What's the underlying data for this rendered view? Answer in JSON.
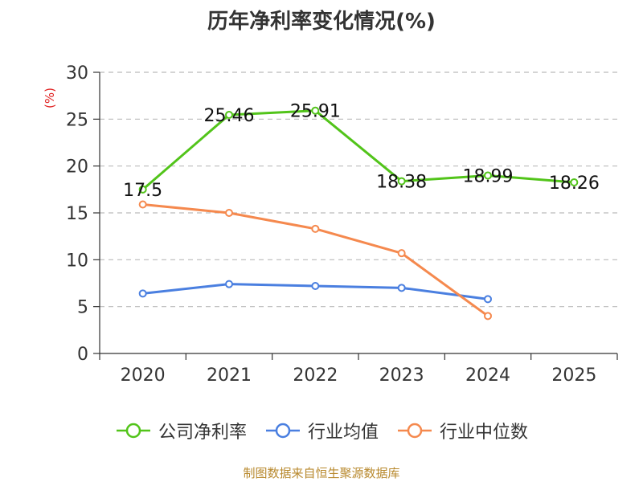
{
  "chart_data": {
    "type": "line",
    "title": "历年净利率变化情况(%)",
    "ylabel": "(%)",
    "categories": [
      "2020",
      "2021",
      "2022",
      "2023",
      "2024",
      "2025"
    ],
    "ylim": [
      0,
      30
    ],
    "yticks": [
      0,
      5,
      10,
      15,
      20,
      25,
      30
    ],
    "grid": true,
    "legend_position": "bottom",
    "series": [
      {
        "name": "公司净利率",
        "color": "#52c41a",
        "values": [
          17.5,
          25.46,
          25.91,
          18.38,
          18.99,
          18.26
        ],
        "labels": [
          "17.5",
          "25.46",
          "25.91",
          "18.38",
          "18.99",
          "18.26"
        ]
      },
      {
        "name": "行业均值",
        "color": "#4a7fe0",
        "values": [
          6.4,
          7.4,
          7.2,
          7.0,
          5.8,
          null
        ],
        "labels": null
      },
      {
        "name": "行业中位数",
        "color": "#f5894e",
        "values": [
          15.9,
          15.0,
          13.3,
          10.7,
          4.0,
          null
        ],
        "labels": null
      }
    ]
  },
  "footer": {
    "source": "制图数据来自恒生聚源数据库"
  }
}
